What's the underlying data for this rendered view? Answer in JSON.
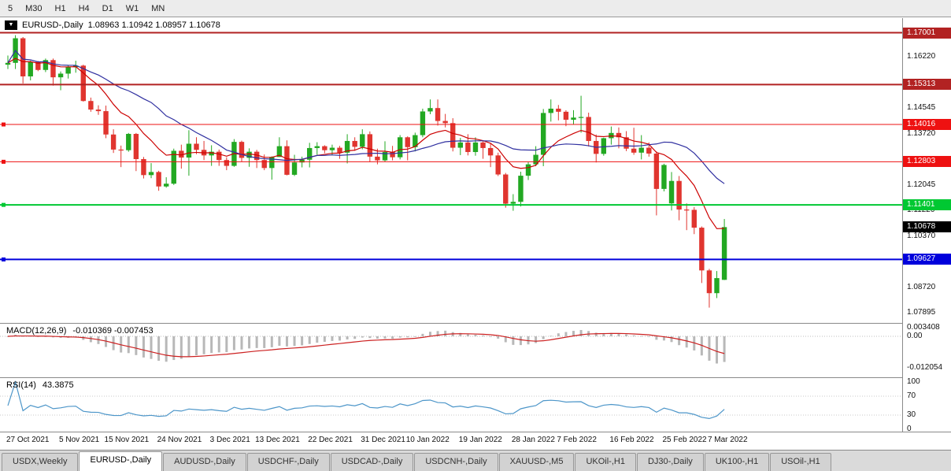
{
  "toolbar": {
    "timeframes": [
      "5",
      "M30",
      "H1",
      "H4",
      "D1",
      "W1",
      "MN"
    ]
  },
  "chart": {
    "symbol_period": "EURUSD-,Daily",
    "ohlc_display": "1.08963 1.10942 1.08957 1.10678",
    "current_price": {
      "label": "1.10678",
      "price": 1.10678,
      "color": "#000000"
    },
    "levels": [
      {
        "price": 1.17001,
        "label": "1.17001",
        "color": "#B22222",
        "width": 2,
        "marker": false
      },
      {
        "price": 1.15313,
        "label": "1.15313",
        "color": "#B22222",
        "width": 2,
        "marker": false
      },
      {
        "price": 1.14016,
        "label": "1.14016",
        "color": "#EE1111",
        "width": 1,
        "marker": true
      },
      {
        "price": 1.12803,
        "label": "1.12803",
        "color": "#EE1111",
        "width": 1,
        "marker": true
      },
      {
        "price": 1.11401,
        "label": "1.11401",
        "color": "#00C832",
        "width": 2,
        "marker": true
      },
      {
        "price": 1.09627,
        "label": "1.09627",
        "color": "#0000DC",
        "width": 2,
        "marker": true
      }
    ],
    "y_axis_labels": [
      {
        "text": "1.16220",
        "price": 1.1622
      },
      {
        "text": "1.14545",
        "price": 1.14545
      },
      {
        "text": "1.13720",
        "price": 1.1372
      },
      {
        "text": "1.12045",
        "price": 1.12045
      },
      {
        "text": "1.11220",
        "price": 1.1122
      },
      {
        "text": "1.10370",
        "price": 1.1037
      },
      {
        "text": "1.08720",
        "price": 1.0872
      },
      {
        "text": "1.07895",
        "price": 1.07895
      }
    ],
    "colors": {
      "up": "#22A822",
      "down": "#E0352F",
      "ma_fast": "#CC0000",
      "ma_slow": "#3030A0",
      "macd_hist": "#B8B8B8",
      "macd_signal": "#CC2020",
      "rsi_line": "#4D96C9"
    }
  },
  "chart_data": {
    "type": "candlestick",
    "title": "EURUSD-,Daily",
    "x_axis_labels": [
      [
        0,
        "27 Oct 2021"
      ],
      [
        7,
        "5 Nov 2021"
      ],
      [
        13,
        "15 Nov 2021"
      ],
      [
        20,
        "24 Nov 2021"
      ],
      [
        27,
        "3 Dec 2021"
      ],
      [
        33,
        "13 Dec 2021"
      ],
      [
        40,
        "22 Dec 2021"
      ],
      [
        47,
        "31 Dec 2021"
      ],
      [
        53,
        "10 Jan 2022"
      ],
      [
        60,
        "19 Jan 2022"
      ],
      [
        67,
        "28 Jan 2022"
      ],
      [
        73,
        "7 Feb 2022"
      ],
      [
        80,
        "16 Feb 2022"
      ],
      [
        87,
        "25 Feb 2022"
      ],
      [
        93,
        "7 Mar 2022"
      ]
    ],
    "candles": [
      [
        "2021-10-27",
        1.1596,
        1.1626,
        1.1582,
        1.1602
      ],
      [
        "2021-10-28",
        1.1602,
        1.1692,
        1.1582,
        1.1682
      ],
      [
        "2021-10-29",
        1.1682,
        1.1686,
        1.1535,
        1.1558
      ],
      [
        "2021-11-01",
        1.1558,
        1.1609,
        1.1545,
        1.1605
      ],
      [
        "2021-11-02",
        1.1605,
        1.1608,
        1.1575,
        1.1579
      ],
      [
        "2021-11-03",
        1.1579,
        1.1616,
        1.1572,
        1.1611
      ],
      [
        "2021-11-04",
        1.1611,
        1.1616,
        1.1528,
        1.1555
      ],
      [
        "2021-11-05",
        1.1555,
        1.1574,
        1.1513,
        1.1567
      ],
      [
        "2021-11-08",
        1.1567,
        1.1594,
        1.1551,
        1.1588
      ],
      [
        "2021-11-09",
        1.1588,
        1.1609,
        1.157,
        1.1593
      ],
      [
        "2021-11-10",
        1.1593,
        1.1596,
        1.1476,
        1.1478
      ],
      [
        "2021-11-11",
        1.1478,
        1.1489,
        1.1443,
        1.145
      ],
      [
        "2021-11-12",
        1.145,
        1.1464,
        1.1433,
        1.1445
      ],
      [
        "2021-11-15",
        1.1445,
        1.1463,
        1.1357,
        1.1369
      ],
      [
        "2021-11-16",
        1.1369,
        1.1386,
        1.1309,
        1.132
      ],
      [
        "2021-11-17",
        1.132,
        1.1333,
        1.1263,
        1.1318
      ],
      [
        "2021-11-18",
        1.1318,
        1.1374,
        1.1313,
        1.1371
      ],
      [
        "2021-11-19",
        1.1371,
        1.1374,
        1.125,
        1.1289
      ],
      [
        "2021-11-22",
        1.1289,
        1.1296,
        1.1226,
        1.1237
      ],
      [
        "2021-11-23",
        1.1237,
        1.1276,
        1.1227,
        1.1247
      ],
      [
        "2021-11-24",
        1.1247,
        1.1251,
        1.1186,
        1.12
      ],
      [
        "2021-11-25",
        1.12,
        1.123,
        1.1196,
        1.1209
      ],
      [
        "2021-11-26",
        1.1209,
        1.1323,
        1.1205,
        1.1316
      ],
      [
        "2021-11-29",
        1.1316,
        1.1336,
        1.1258,
        1.1294
      ],
      [
        "2021-11-30",
        1.1294,
        1.1383,
        1.1235,
        1.1339
      ],
      [
        "2021-12-01",
        1.1339,
        1.136,
        1.1305,
        1.1319
      ],
      [
        "2021-12-02",
        1.1319,
        1.1348,
        1.1286,
        1.1301
      ],
      [
        "2021-12-03",
        1.1301,
        1.1334,
        1.1267,
        1.1313
      ],
      [
        "2021-12-06",
        1.1313,
        1.132,
        1.1267,
        1.1286
      ],
      [
        "2021-12-07",
        1.1286,
        1.1295,
        1.1253,
        1.1267
      ],
      [
        "2021-12-08",
        1.1267,
        1.1354,
        1.1264,
        1.1345
      ],
      [
        "2021-12-09",
        1.1345,
        1.1349,
        1.128,
        1.1293
      ],
      [
        "2021-12-10",
        1.1293,
        1.1324,
        1.1264,
        1.1313
      ],
      [
        "2021-12-13",
        1.1313,
        1.1319,
        1.126,
        1.1286
      ],
      [
        "2021-12-14",
        1.1286,
        1.1304,
        1.1253,
        1.126
      ],
      [
        "2021-12-15",
        1.126,
        1.1298,
        1.1222,
        1.1296
      ],
      [
        "2021-12-16",
        1.1296,
        1.136,
        1.1296,
        1.1331
      ],
      [
        "2021-12-17",
        1.1331,
        1.135,
        1.1236,
        1.1238
      ],
      [
        "2021-12-20",
        1.1238,
        1.1303,
        1.1234,
        1.1278
      ],
      [
        "2021-12-21",
        1.1278,
        1.1297,
        1.1262,
        1.1287
      ],
      [
        "2021-12-22",
        1.1287,
        1.1342,
        1.1262,
        1.1325
      ],
      [
        "2021-12-23",
        1.1325,
        1.1344,
        1.1303,
        1.1331
      ],
      [
        "2021-12-24",
        1.1331,
        1.1334,
        1.1308,
        1.1318
      ],
      [
        "2021-12-27",
        1.1318,
        1.1336,
        1.1303,
        1.1326
      ],
      [
        "2021-12-28",
        1.1326,
        1.1332,
        1.129,
        1.131
      ],
      [
        "2021-12-29",
        1.131,
        1.137,
        1.1275,
        1.1348
      ],
      [
        "2021-12-30",
        1.1348,
        1.136,
        1.1316,
        1.1329
      ],
      [
        "2021-12-31",
        1.1329,
        1.1386,
        1.1321,
        1.137
      ],
      [
        "2022-01-03",
        1.137,
        1.1379,
        1.1279,
        1.1297
      ],
      [
        "2022-01-04",
        1.1297,
        1.1323,
        1.1272,
        1.1285
      ],
      [
        "2022-01-05",
        1.1285,
        1.1347,
        1.128,
        1.1312
      ],
      [
        "2022-01-06",
        1.1312,
        1.1332,
        1.1285,
        1.1295
      ],
      [
        "2022-01-07",
        1.1295,
        1.1367,
        1.1288,
        1.136
      ],
      [
        "2022-01-10",
        1.136,
        1.1363,
        1.1285,
        1.1328
      ],
      [
        "2022-01-11",
        1.1328,
        1.1375,
        1.1314,
        1.1367
      ],
      [
        "2022-01-12",
        1.1367,
        1.1453,
        1.136,
        1.1444
      ],
      [
        "2022-01-13",
        1.1444,
        1.1483,
        1.1435,
        1.1455
      ],
      [
        "2022-01-14",
        1.1455,
        1.1483,
        1.1398,
        1.1413
      ],
      [
        "2022-01-17",
        1.1413,
        1.1436,
        1.1392,
        1.1406
      ],
      [
        "2022-01-18",
        1.1406,
        1.1422,
        1.1314,
        1.1326
      ],
      [
        "2022-01-19",
        1.1326,
        1.1358,
        1.1302,
        1.1343
      ],
      [
        "2022-01-20",
        1.1343,
        1.137,
        1.1301,
        1.1312
      ],
      [
        "2022-01-21",
        1.1312,
        1.136,
        1.13,
        1.1343
      ],
      [
        "2022-01-24",
        1.1343,
        1.1349,
        1.129,
        1.1325
      ],
      [
        "2022-01-25",
        1.1325,
        1.134,
        1.1263,
        1.1301
      ],
      [
        "2022-01-26",
        1.1301,
        1.131,
        1.1234,
        1.1239
      ],
      [
        "2022-01-27",
        1.1239,
        1.1244,
        1.1131,
        1.1144
      ],
      [
        "2022-01-28",
        1.1144,
        1.1175,
        1.1121,
        1.115
      ],
      [
        "2022-01-31",
        1.115,
        1.1248,
        1.1135,
        1.1235
      ],
      [
        "2022-02-01",
        1.1235,
        1.1279,
        1.1221,
        1.1272
      ],
      [
        "2022-02-02",
        1.1272,
        1.1331,
        1.1266,
        1.1303
      ],
      [
        "2022-02-03",
        1.1303,
        1.1452,
        1.1266,
        1.1439
      ],
      [
        "2022-02-04",
        1.1439,
        1.1483,
        1.1411,
        1.1453
      ],
      [
        "2022-02-07",
        1.1453,
        1.1465,
        1.1415,
        1.1443
      ],
      [
        "2022-02-08",
        1.1443,
        1.1448,
        1.1396,
        1.1417
      ],
      [
        "2022-02-09",
        1.1417,
        1.1448,
        1.1403,
        1.1424
      ],
      [
        "2022-02-10",
        1.1424,
        1.1495,
        1.1375,
        1.1426
      ],
      [
        "2022-02-11",
        1.1426,
        1.144,
        1.133,
        1.1348
      ],
      [
        "2022-02-14",
        1.1348,
        1.1369,
        1.1278,
        1.1306
      ],
      [
        "2022-02-15",
        1.1306,
        1.1359,
        1.13,
        1.1357
      ],
      [
        "2022-02-16",
        1.1357,
        1.1395,
        1.1336,
        1.1374
      ],
      [
        "2022-02-17",
        1.1374,
        1.1392,
        1.1324,
        1.136
      ],
      [
        "2022-02-18",
        1.136,
        1.138,
        1.1315,
        1.1323
      ],
      [
        "2022-02-21",
        1.1323,
        1.1391,
        1.1303,
        1.131
      ],
      [
        "2022-02-22",
        1.131,
        1.1367,
        1.1288,
        1.1326
      ],
      [
        "2022-02-23",
        1.1326,
        1.1343,
        1.1297,
        1.1307
      ],
      [
        "2022-02-24",
        1.1307,
        1.1314,
        1.1106,
        1.1192
      ],
      [
        "2022-02-25",
        1.1192,
        1.1274,
        1.1184,
        1.127
      ],
      [
        "2022-02-28",
        1.1145,
        1.1247,
        1.1122,
        1.1218
      ],
      [
        "2022-03-01",
        1.1218,
        1.1234,
        1.109,
        1.1125
      ],
      [
        "2022-03-02",
        1.1125,
        1.1145,
        1.1058,
        1.1124
      ],
      [
        "2022-03-03",
        1.1124,
        1.1133,
        1.1045,
        1.1066
      ],
      [
        "2022-03-04",
        1.1066,
        1.107,
        1.0886,
        1.0927
      ],
      [
        "2022-03-07",
        1.0927,
        1.0932,
        1.0806,
        1.0853
      ],
      [
        "2022-03-08",
        1.0853,
        1.0925,
        1.0837,
        1.0902
      ],
      [
        "2022-03-09",
        1.08963,
        1.10942,
        1.08957,
        1.10678
      ]
    ]
  },
  "macd": {
    "label": "MACD(12,26,9)",
    "values_text": "-0.010369 -0.007453",
    "fast": 12,
    "slow": 26,
    "signal": 9,
    "axis": [
      {
        "text": "0.003408",
        "value": 0.003408
      },
      {
        "text": "0.00",
        "value": 0
      },
      {
        "text": "-0.012054",
        "value": -0.012054
      }
    ]
  },
  "rsi": {
    "label": "RSI(14)",
    "value_text": "43.3875",
    "period": 14,
    "levels": [
      70,
      30
    ],
    "axis": [
      {
        "text": "100",
        "value": 100
      },
      {
        "text": "70",
        "value": 70
      },
      {
        "text": "30",
        "value": 30
      },
      {
        "text": "0",
        "value": 0
      }
    ]
  },
  "tabs": {
    "items": [
      "USDX,Weekly",
      "EURUSD-,Daily",
      "AUDUSD-,Daily",
      "USDCHF-,Daily",
      "USDCAD-,Daily",
      "USDCNH-,Daily",
      "XAUUSD-,M5",
      "UKOil-,H1",
      "DJ30-,Daily",
      "UK100-,H1",
      "USOil-,H1"
    ],
    "active_index": 1
  }
}
